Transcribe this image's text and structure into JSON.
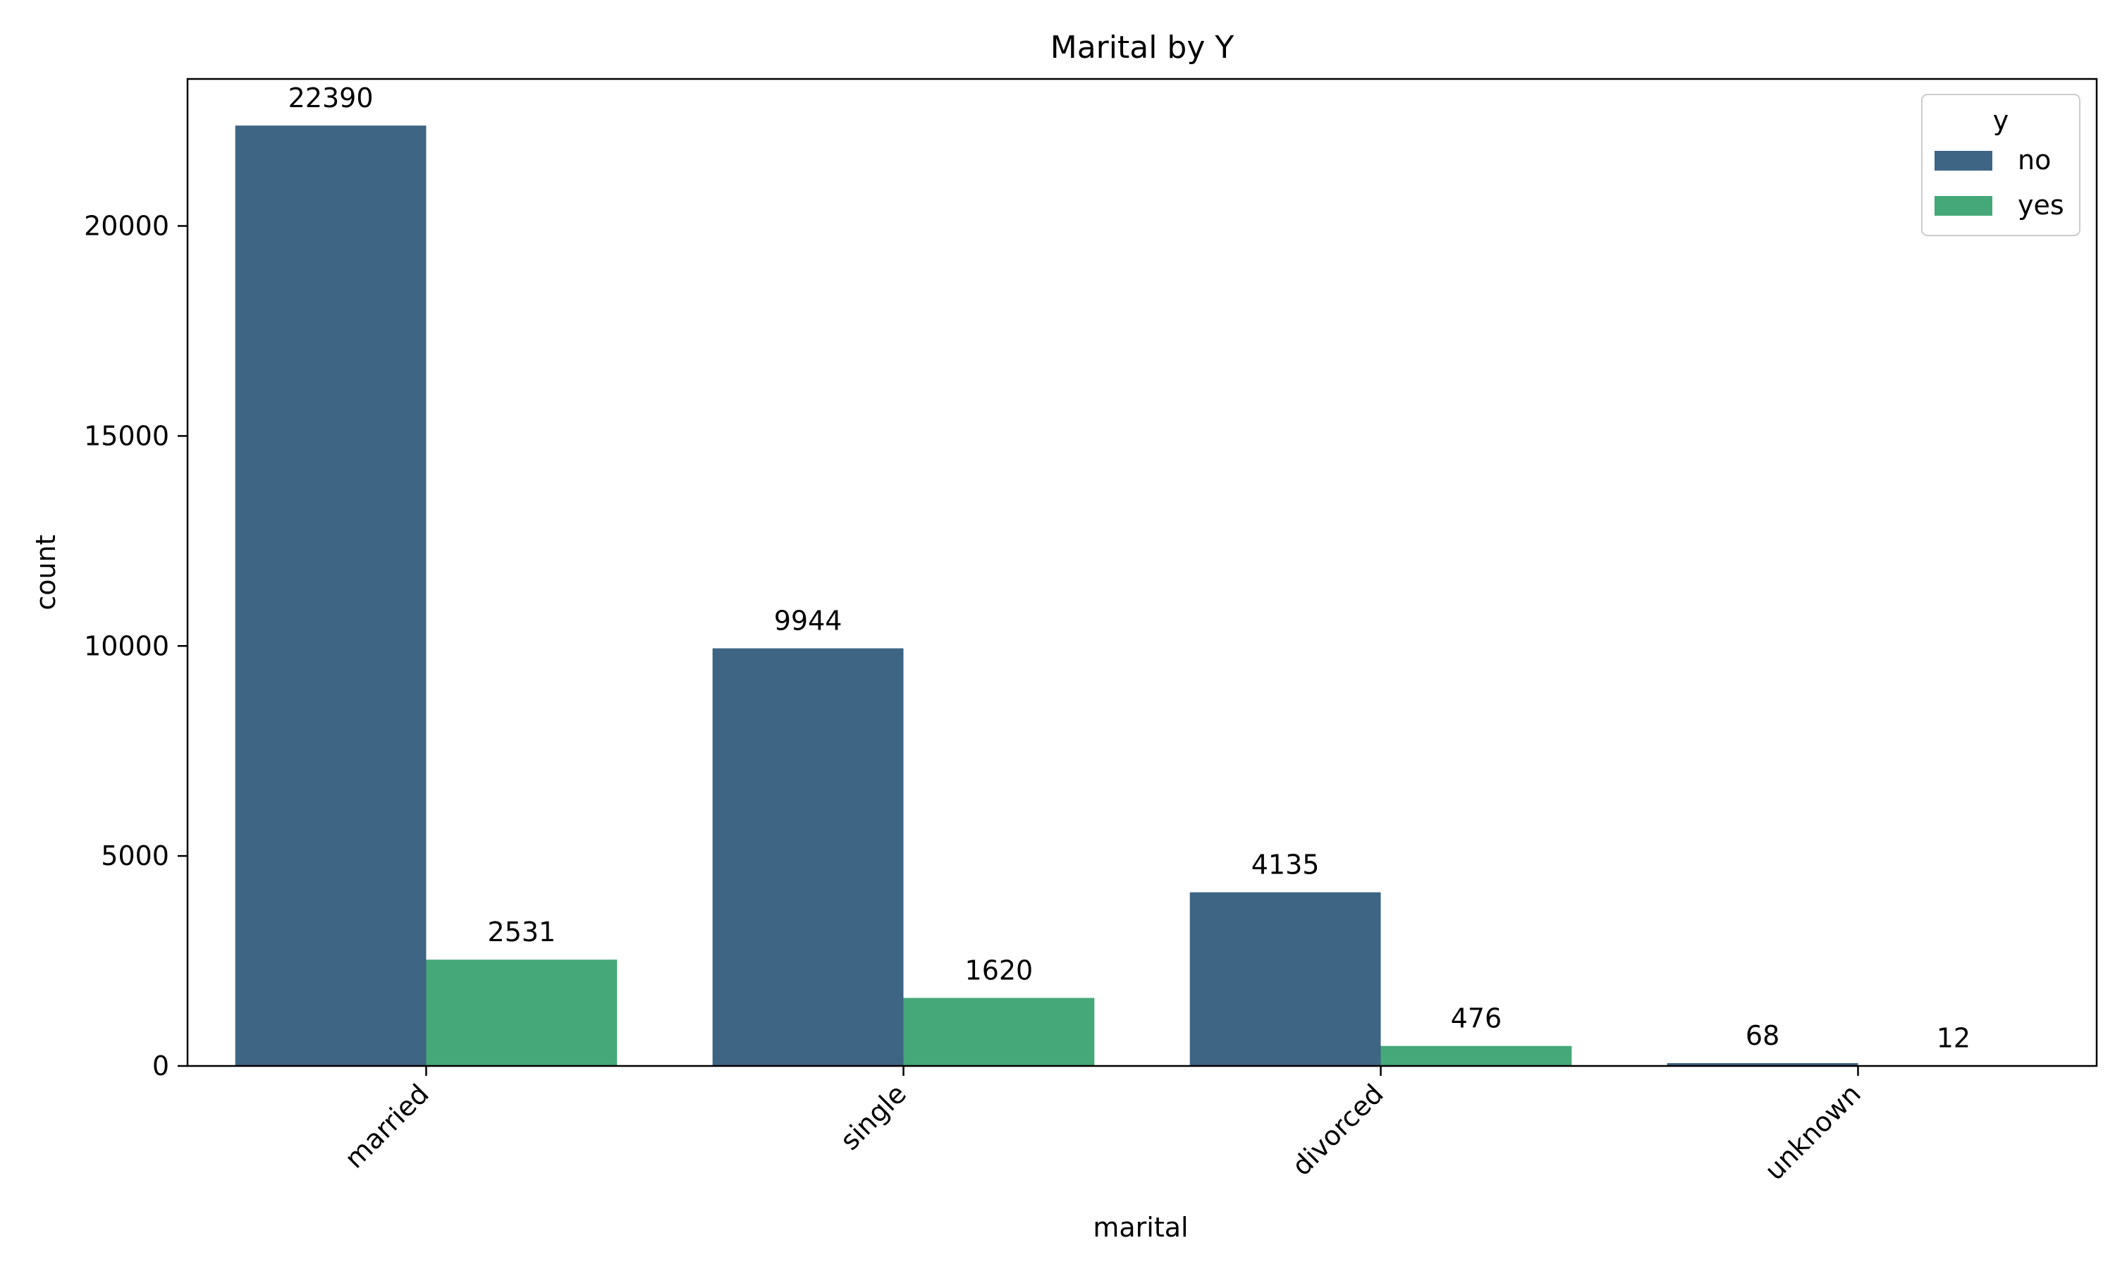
{
  "chart_data": {
    "type": "bar",
    "title": "Marital by Y",
    "xlabel": "marital",
    "ylabel": "count",
    "categories": [
      "married",
      "single",
      "divorced",
      "unknown"
    ],
    "series": [
      {
        "name": "no",
        "color": "#3e6583",
        "values": [
          22390,
          9944,
          4135,
          68
        ]
      },
      {
        "name": "yes",
        "color": "#45a878",
        "values": [
          2531,
          1620,
          476,
          12
        ]
      }
    ],
    "ylim": [
      0,
      23500
    ],
    "yticks": [
      "0",
      "5000",
      "10000",
      "15000",
      "20000"
    ],
    "legend": {
      "title": "y",
      "position": "top-right"
    },
    "grid": false
  }
}
